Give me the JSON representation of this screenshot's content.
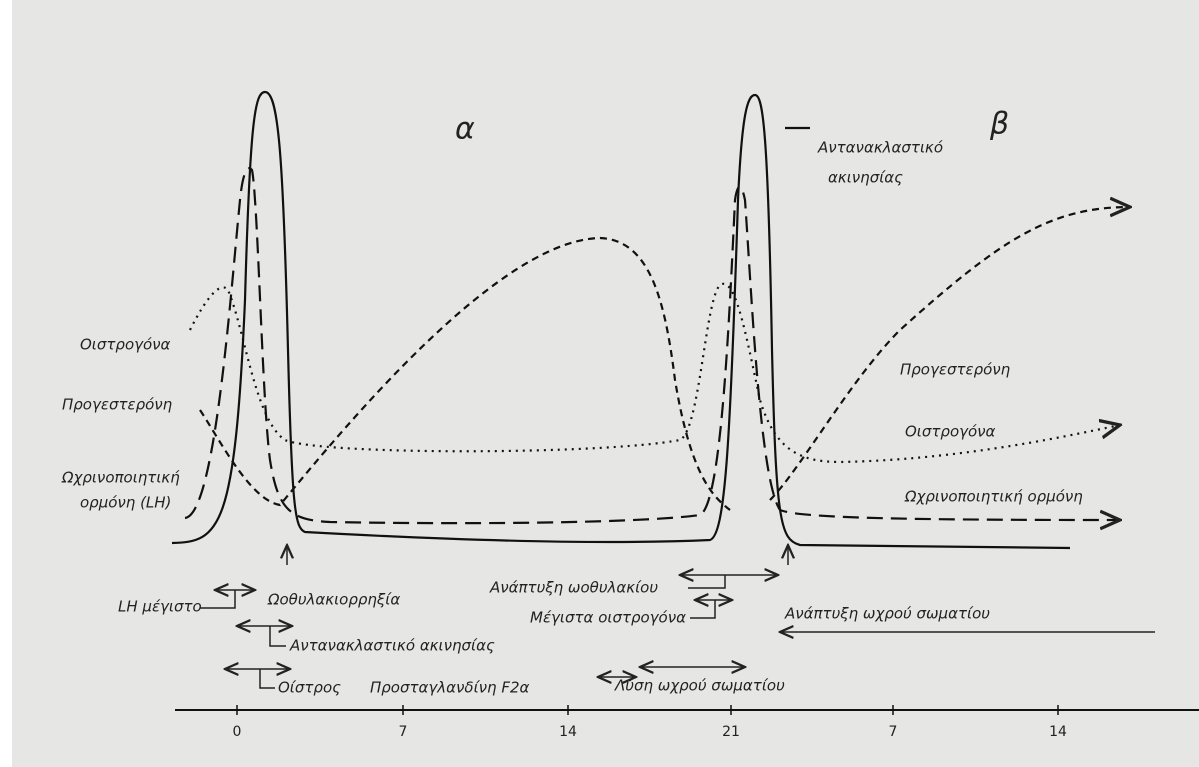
{
  "diagram": {
    "phases": [
      "α",
      "β"
    ],
    "solid_legend": {
      "line1": "Αντανακλαστικό",
      "line2": "ακινησίας"
    },
    "left_labels": [
      "Οιστρογόνα",
      "Προγεστερόνη",
      "Ωχρινοποιητική",
      "ορμόνη (LH)"
    ],
    "right_labels": [
      "Προγεστερόνη",
      "Οιστρογόνα",
      "Ωχρινοποιητική ορμόνη"
    ],
    "events": [
      "LH μέγιστο",
      "Ωοθυλακιορρηξία",
      "Αντανακλαστικό ακινησίας",
      "Οίστρος",
      "Προσταγλανδίνη F2α",
      "Ανάπτυξη ωοθυλακίου",
      "Μέγιστα οιστρογόνα",
      "Λύση ωχρού σωματίου",
      "Ανάπτυξη ωχρού σωματίου"
    ],
    "axis_ticks": [
      "0",
      "7",
      "14",
      "21",
      "7",
      "14"
    ]
  }
}
